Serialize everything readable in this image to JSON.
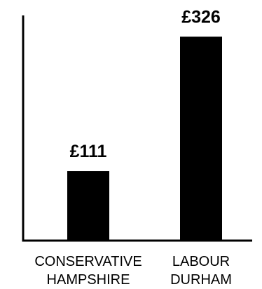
{
  "chart_data": {
    "type": "bar",
    "categories": [
      [
        "CONSERVATIVE",
        "HAMPSHIRE"
      ],
      [
        "LABOUR",
        "DURHAM"
      ]
    ],
    "values": [
      111,
      326
    ],
    "data_labels": [
      "£111",
      "£326"
    ],
    "title": "",
    "xlabel": "",
    "ylabel": "",
    "ylim": [
      0,
      360
    ],
    "grid": false,
    "bar_color": "#000000",
    "axis_color": "#000000"
  }
}
